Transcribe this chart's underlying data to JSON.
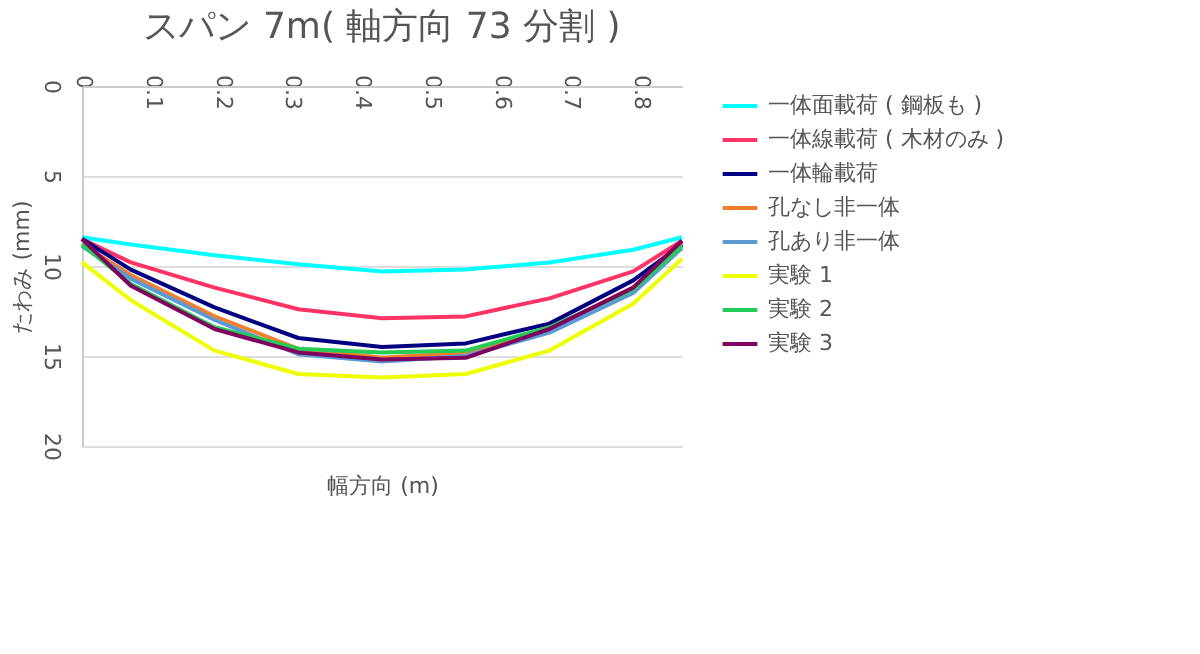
{
  "chart_data": {
    "type": "line",
    "title": "スパン 7m( 軸方向 73 分割 )",
    "xlabel": "幅方向 (m)",
    "ylabel": "たわみ (mm)",
    "x": [
      0,
      0.07,
      0.19,
      0.31,
      0.43,
      0.55,
      0.67,
      0.79,
      0.86
    ],
    "xlim": [
      0,
      0.86
    ],
    "xticks": [
      0,
      0.1,
      0.2,
      0.3,
      0.4,
      0.5,
      0.6,
      0.7,
      0.8
    ],
    "ylim": [
      20,
      0
    ],
    "yticks": [
      0,
      5,
      10,
      15,
      20
    ],
    "grid": "y",
    "legend": "right",
    "marker": "none",
    "line_style": "solid",
    "series": [
      {
        "name": "一体面載荷 ( 鋼板も )",
        "color": "#00ffff",
        "values": [
          8.4,
          8.8,
          9.4,
          9.9,
          10.3,
          10.2,
          9.8,
          9.1,
          8.4
        ]
      },
      {
        "name": "一体線載荷 ( 木材のみ )",
        "color": "#ff3366",
        "values": [
          8.5,
          9.8,
          11.2,
          12.4,
          12.9,
          12.8,
          11.8,
          10.3,
          8.6
        ]
      },
      {
        "name": "一体輪載荷",
        "color": "#000080",
        "values": [
          8.5,
          10.2,
          12.3,
          14.0,
          14.5,
          14.3,
          13.2,
          10.8,
          8.8
        ]
      },
      {
        "name": "孔なし非一体",
        "color": "#f07f30",
        "values": [
          8.8,
          10.5,
          12.8,
          14.6,
          15.1,
          14.8,
          13.5,
          11.2,
          8.7
        ]
      },
      {
        "name": "孔あり非一体",
        "color": "#5b9bd5",
        "values": [
          8.9,
          10.7,
          13.0,
          14.9,
          15.3,
          15.0,
          13.7,
          11.5,
          9.0
        ]
      },
      {
        "name": "実験 1",
        "color": "#eeff00",
        "values": [
          9.8,
          11.9,
          14.7,
          16.0,
          16.2,
          16.0,
          14.7,
          12.1,
          9.6
        ]
      },
      {
        "name": "実験 2",
        "color": "#22cc55",
        "values": [
          8.8,
          11.0,
          13.4,
          14.6,
          14.8,
          14.7,
          13.4,
          11.3,
          8.9
        ]
      },
      {
        "name": "実験 3",
        "color": "#800060",
        "values": [
          8.5,
          11.1,
          13.5,
          14.8,
          15.2,
          15.1,
          13.5,
          11.2,
          8.6
        ]
      }
    ]
  }
}
